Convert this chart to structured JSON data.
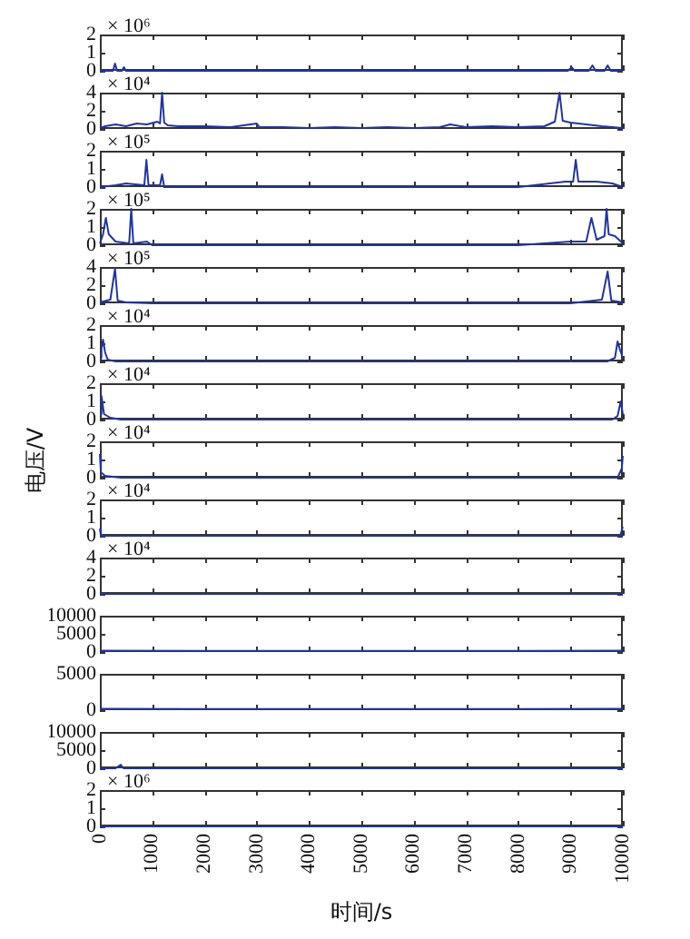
{
  "chart_data": [
    {
      "type": "line",
      "color": "#22359a",
      "marker": "none",
      "tick_labels": "y",
      "annotations": [
        "× 10⁶"
      ],
      "xlim": [
        0,
        10000
      ],
      "xticks": [
        0,
        1000,
        2000,
        3000,
        4000,
        5000,
        6000,
        7000,
        8000,
        9000,
        10000
      ],
      "ylim": [
        0,
        2
      ],
      "yticks": [
        0,
        1,
        2
      ],
      "x": [
        0,
        250,
        290,
        330,
        420,
        460,
        500,
        1000,
        2000,
        3000,
        4000,
        5000,
        6000,
        7000,
        8000,
        8500,
        8950,
        9020,
        9080,
        9350,
        9420,
        9480,
        9650,
        9710,
        9770,
        10000
      ],
      "values": [
        0,
        0,
        0.4,
        0,
        0,
        0.2,
        0,
        0,
        0,
        0,
        0,
        0,
        0,
        0,
        0,
        0,
        0,
        0.2,
        0,
        0,
        0.3,
        0,
        0,
        0.3,
        0,
        0
      ]
    },
    {
      "type": "line",
      "color": "#22359a",
      "marker": "none",
      "tick_labels": "y",
      "annotations": [
        "× 10⁴"
      ],
      "xlim": [
        0,
        10000
      ],
      "xticks": [
        0,
        1000,
        2000,
        3000,
        4000,
        5000,
        6000,
        7000,
        8000,
        9000,
        10000
      ],
      "ylim": [
        0,
        4
      ],
      "yticks": [
        0,
        2,
        4
      ],
      "x": [
        0,
        100,
        300,
        500,
        700,
        900,
        1100,
        1150,
        1190,
        1230,
        1300,
        1500,
        2000,
        2500,
        3000,
        3050,
        3500,
        4000,
        4500,
        5000,
        5500,
        6000,
        6500,
        6700,
        7000,
        7500,
        8000,
        8500,
        8700,
        8790,
        8850,
        9000,
        9300,
        9600,
        10000
      ],
      "values": [
        0.1,
        0.3,
        0.5,
        0.3,
        0.6,
        0.5,
        0.8,
        0.6,
        4,
        0.7,
        0.4,
        0.3,
        0.3,
        0.2,
        0.6,
        0.2,
        0.2,
        0.1,
        0.2,
        0.1,
        0.2,
        0.1,
        0.2,
        0.5,
        0.2,
        0.3,
        0.2,
        0.3,
        0.8,
        4,
        0.9,
        0.7,
        0.5,
        0.3,
        0.1
      ]
    },
    {
      "type": "line",
      "color": "#22359a",
      "marker": "none",
      "tick_labels": "y",
      "annotations": [
        "× 10⁵"
      ],
      "xlim": [
        0,
        10000
      ],
      "xticks": [
        0,
        1000,
        2000,
        3000,
        4000,
        5000,
        6000,
        7000,
        8000,
        9000,
        10000
      ],
      "ylim": [
        0,
        2
      ],
      "yticks": [
        0,
        1,
        2
      ],
      "x": [
        0,
        300,
        500,
        850,
        890,
        930,
        1150,
        1190,
        1230,
        2000,
        4000,
        6000,
        8000,
        8900,
        9050,
        9100,
        9150,
        9500,
        9800,
        10000
      ],
      "values": [
        0,
        0.1,
        0.2,
        0.1,
        1.5,
        0.1,
        0.1,
        0.7,
        0,
        0,
        0,
        0,
        0,
        0.3,
        0.3,
        1.5,
        0.3,
        0.3,
        0.2,
        0
      ]
    },
    {
      "type": "line",
      "color": "#22359a",
      "marker": "none",
      "tick_labels": "y",
      "annotations": [
        "× 10⁵"
      ],
      "xlim": [
        0,
        10000
      ],
      "xticks": [
        0,
        1000,
        2000,
        3000,
        4000,
        5000,
        6000,
        7000,
        8000,
        9000,
        10000
      ],
      "ylim": [
        0,
        2
      ],
      "yticks": [
        0,
        1,
        2
      ],
      "x": [
        0,
        60,
        115,
        170,
        300,
        560,
        600,
        640,
        900,
        1000,
        2000,
        5000,
        8000,
        9000,
        9300,
        9400,
        9500,
        9650,
        9690,
        9730,
        9850,
        10000
      ],
      "values": [
        0.1,
        0.6,
        1.5,
        0.6,
        0.2,
        0.1,
        2,
        0.1,
        0.2,
        0,
        0,
        0,
        0,
        0.2,
        0.2,
        1.5,
        0.3,
        0.5,
        2,
        0.6,
        0.5,
        0.1
      ]
    },
    {
      "type": "line",
      "color": "#22359a",
      "marker": "none",
      "tick_labels": "y",
      "annotations": [
        "× 10⁵"
      ],
      "xlim": [
        0,
        10000
      ],
      "xticks": [
        0,
        1000,
        2000,
        3000,
        4000,
        5000,
        6000,
        7000,
        8000,
        9000,
        10000
      ],
      "ylim": [
        0,
        4
      ],
      "yticks": [
        0,
        2,
        4
      ],
      "x": [
        0,
        200,
        290,
        340,
        500,
        1000,
        5000,
        9000,
        9600,
        9710,
        9780,
        10000
      ],
      "values": [
        0.1,
        0.4,
        3.8,
        0.3,
        0.1,
        0,
        0,
        0,
        0.4,
        3.5,
        0.3,
        0.1
      ]
    },
    {
      "type": "line",
      "color": "#22359a",
      "marker": "none",
      "tick_labels": "y",
      "annotations": [
        "× 10⁴"
      ],
      "xlim": [
        0,
        10000
      ],
      "xticks": [
        0,
        1000,
        2000,
        3000,
        4000,
        5000,
        6000,
        7000,
        8000,
        9000,
        10000
      ],
      "ylim": [
        0,
        2
      ],
      "yticks": [
        0,
        1,
        2
      ],
      "x": [
        0,
        30,
        60,
        100,
        150,
        300,
        5000,
        9700,
        9850,
        9900,
        9950,
        10000
      ],
      "values": [
        0.2,
        0.7,
        1.2,
        0.5,
        0.1,
        0,
        0,
        0,
        0.2,
        1.1,
        0.6,
        0.2
      ]
    },
    {
      "type": "line",
      "color": "#22359a",
      "marker": "none",
      "tick_labels": "y",
      "annotations": [
        "× 10⁴"
      ],
      "xlim": [
        0,
        10000
      ],
      "xticks": [
        0,
        1000,
        2000,
        3000,
        4000,
        5000,
        6000,
        7000,
        8000,
        9000,
        10000
      ],
      "ylim": [
        0,
        2
      ],
      "yticks": [
        0,
        1,
        2
      ],
      "x": [
        0,
        30,
        80,
        200,
        400,
        5000,
        9800,
        9900,
        9960,
        10000
      ],
      "values": [
        0.3,
        1.3,
        0.3,
        0.1,
        0,
        0,
        0,
        0.2,
        1,
        0.3
      ]
    },
    {
      "type": "line",
      "color": "#22359a",
      "marker": "none",
      "tick_labels": "y",
      "annotations": [
        "× 10⁴"
      ],
      "ylabel": "电压/V",
      "xlim": [
        0,
        10000
      ],
      "xticks": [
        0,
        1000,
        2000,
        3000,
        4000,
        5000,
        6000,
        7000,
        8000,
        9000,
        10000
      ],
      "ylim": [
        0,
        2
      ],
      "yticks": [
        0,
        1,
        2
      ],
      "x": [
        0,
        20,
        100,
        400,
        5000,
        9900,
        9980,
        10000
      ],
      "values": [
        1.3,
        0.3,
        0.1,
        0,
        0,
        0,
        0.5,
        1.2
      ]
    },
    {
      "type": "line",
      "color": "#22359a",
      "marker": "none",
      "tick_labels": "y",
      "annotations": [
        "× 10⁴"
      ],
      "xlim": [
        0,
        10000
      ],
      "xticks": [
        0,
        1000,
        2000,
        3000,
        4000,
        5000,
        6000,
        7000,
        8000,
        9000,
        10000
      ],
      "ylim": [
        0,
        2
      ],
      "yticks": [
        0,
        1,
        2
      ],
      "x": [
        0,
        20,
        100,
        5000,
        9950,
        10000
      ],
      "values": [
        0.4,
        0,
        0,
        0,
        0,
        0.5
      ]
    },
    {
      "type": "line",
      "color": "#22359a",
      "marker": "none",
      "tick_labels": "y",
      "annotations": [
        "× 10⁴"
      ],
      "xlim": [
        0,
        10000
      ],
      "xticks": [
        0,
        1000,
        2000,
        3000,
        4000,
        5000,
        6000,
        7000,
        8000,
        9000,
        10000
      ],
      "ylim": [
        0,
        4
      ],
      "yticks": [
        0,
        2,
        4
      ],
      "x": [
        0,
        50,
        5000,
        9950,
        10000
      ],
      "values": [
        0.1,
        0,
        0,
        0,
        0.1
      ]
    },
    {
      "type": "line",
      "color": "#22359a",
      "marker": "none",
      "tick_labels": "y",
      "xlim": [
        0,
        10000
      ],
      "xticks": [
        0,
        1000,
        2000,
        3000,
        4000,
        5000,
        6000,
        7000,
        8000,
        9000,
        10000
      ],
      "ylim": [
        0,
        10000
      ],
      "yticks": [
        0,
        5000,
        10000
      ],
      "x": [
        0,
        2000,
        4000,
        6000,
        8000,
        10000
      ],
      "values": [
        400,
        300,
        300,
        300,
        300,
        400
      ]
    },
    {
      "type": "line",
      "color": "#22359a",
      "marker": "none",
      "tick_labels": "y",
      "xlim": [
        0,
        10000
      ],
      "xticks": [
        0,
        1000,
        2000,
        3000,
        4000,
        5000,
        6000,
        7000,
        8000,
        9000,
        10000
      ],
      "ylim": [
        0,
        5000
      ],
      "yticks": [
        0,
        5000
      ],
      "x": [
        0,
        2000,
        4000,
        6000,
        8000,
        10000
      ],
      "values": [
        200,
        150,
        150,
        150,
        150,
        200
      ]
    },
    {
      "type": "line",
      "color": "#22359a",
      "marker": "none",
      "tick_labels": "y",
      "xlim": [
        0,
        10000
      ],
      "xticks": [
        0,
        1000,
        2000,
        3000,
        4000,
        5000,
        6000,
        7000,
        8000,
        9000,
        10000
      ],
      "ylim": [
        0,
        10000
      ],
      "yticks": [
        0,
        5000,
        10000
      ],
      "x": [
        0,
        300,
        400,
        450,
        500,
        1000,
        5000,
        10000
      ],
      "values": [
        0,
        0,
        1000,
        0,
        0,
        0,
        0,
        0
      ]
    },
    {
      "type": "line",
      "color": "#22359a",
      "marker": "none",
      "annotations": [
        "× 10⁶"
      ],
      "xlabel": "时间/s",
      "xlim": [
        0,
        10000
      ],
      "xticks": [
        0,
        1000,
        2000,
        3000,
        4000,
        5000,
        6000,
        7000,
        8000,
        9000,
        10000
      ],
      "ylim": [
        0,
        2
      ],
      "yticks": [
        0,
        1,
        2
      ],
      "x": [
        0,
        10000
      ],
      "values": [
        0,
        0
      ]
    }
  ]
}
